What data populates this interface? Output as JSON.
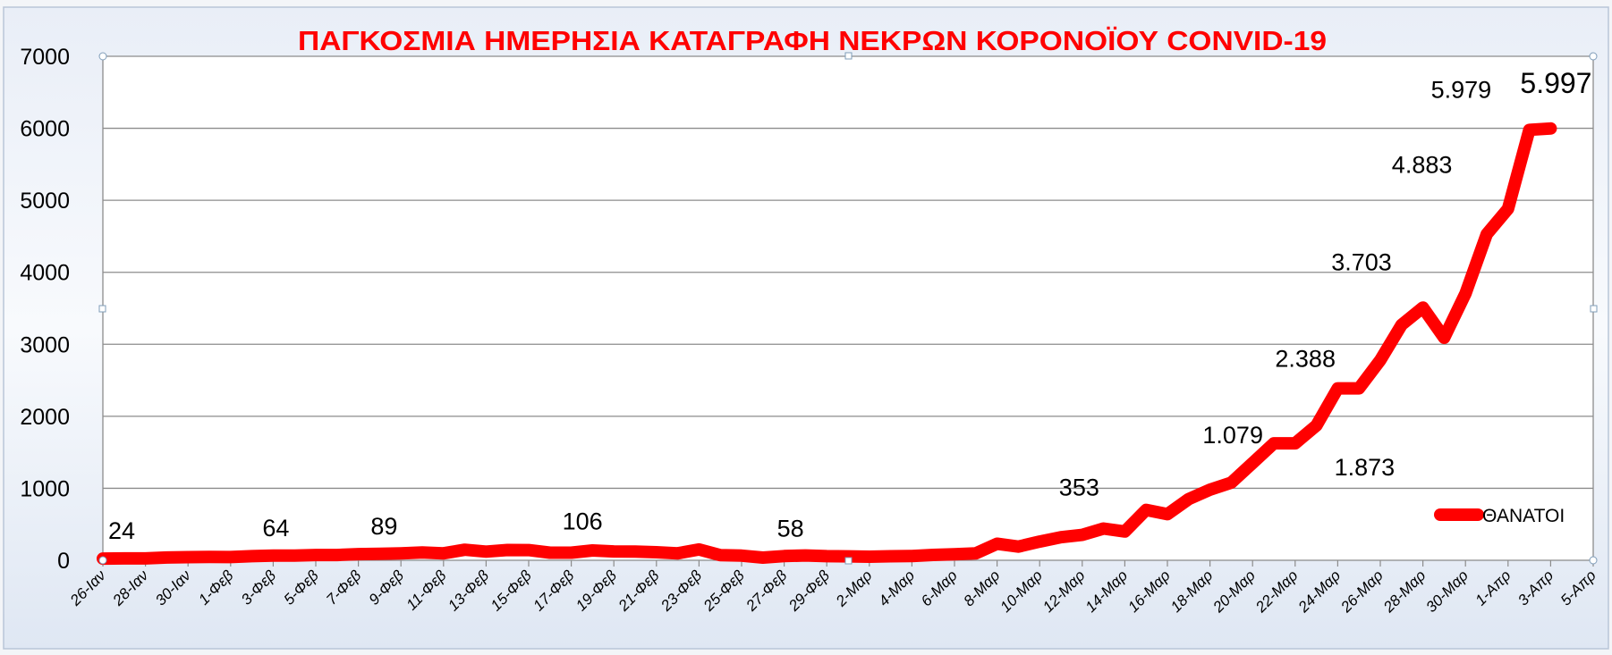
{
  "chart_data": {
    "type": "line",
    "title": "ΠΑΓΚΟΣΜΙΑ ΗΜΕΡΗΣΙΑ ΚΑΤΑΓΡΑΦΗ ΝΕΚΡΩΝ ΚΟΡΟΝΟΪΟΥ CONVID-19",
    "xlabel": "",
    "ylabel": "",
    "ylim": [
      0,
      7000
    ],
    "yticks": [
      "0",
      "1000",
      "2000",
      "3000",
      "4000",
      "5000",
      "6000",
      "7000"
    ],
    "xtick_labels": [
      "26-Ιαν",
      "28-Ιαν",
      "30-Ιαν",
      "1-Φεβ",
      "3-Φεβ",
      "5-Φεβ",
      "7-Φεβ",
      "9-Φεβ",
      "11-Φεβ",
      "13-Φεβ",
      "15-Φεβ",
      "17-Φεβ",
      "19-Φεβ",
      "21-Φεβ",
      "23-Φεβ",
      "25-Φεβ",
      "27-Φεβ",
      "29-Φεβ",
      "2-Μαρ",
      "4-Μαρ",
      "6-Μαρ",
      "8-Μαρ",
      "10-Μαρ",
      "12-Μαρ",
      "14-Μαρ",
      "16-Μαρ",
      "18-Μαρ",
      "20-Μαρ",
      "22-Μαρ",
      "24-Μαρ",
      "26-Μαρ",
      "28-Μαρ",
      "30-Μαρ",
      "1-Απρ",
      "3-Απρ",
      "5-Απρ"
    ],
    "x_range": [
      "2020-01-26",
      "2020-04-05"
    ],
    "grid": true,
    "legend": "right",
    "series": [
      {
        "name": "ΘΑΝΑΤΟΙ",
        "color": "#ff0000",
        "x_start": "2020-01-26",
        "values": [
          24,
          26,
          26,
          38,
          43,
          46,
          45,
          57,
          64,
          66,
          73,
          73,
          86,
          89,
          97,
          108,
          97,
          146,
          121,
          143,
          142,
          105,
          106,
          136,
          123,
          121,
          112,
          97,
          150,
          71,
          64,
          37,
          58,
          67,
          57,
          55,
          50,
          56,
          60,
          75,
          84,
          96,
          230,
          190,
          260,
          320,
          353,
          440,
          400,
          700,
          640,
          850,
          980,
          1079,
          1350,
          1625,
          1625,
          1873,
          2388,
          2388,
          2780,
          3270,
          3510,
          3090,
          3703,
          4530,
          4883,
          5979,
          5997
        ]
      }
    ],
    "data_labels": [
      {
        "date": "2020-01-26",
        "text": "24"
      },
      {
        "date": "2020-02-03",
        "text": "64"
      },
      {
        "date": "2020-02-08",
        "text": "89"
      },
      {
        "date": "2020-02-17",
        "text": "106"
      },
      {
        "date": "2020-02-27",
        "text": "58"
      },
      {
        "date": "2020-03-12",
        "text": "353"
      },
      {
        "date": "2020-03-19",
        "text": "1.079"
      },
      {
        "date": "2020-03-23",
        "text": "1.873"
      },
      {
        "date": "2020-03-24",
        "text": "2.388"
      },
      {
        "date": "2020-03-30",
        "text": "3.703"
      },
      {
        "date": "2020-04-01",
        "text": "4.883"
      },
      {
        "date": "2020-04-02",
        "text": "5.979"
      },
      {
        "date": "2020-04-03",
        "text": "5.997"
      }
    ]
  }
}
